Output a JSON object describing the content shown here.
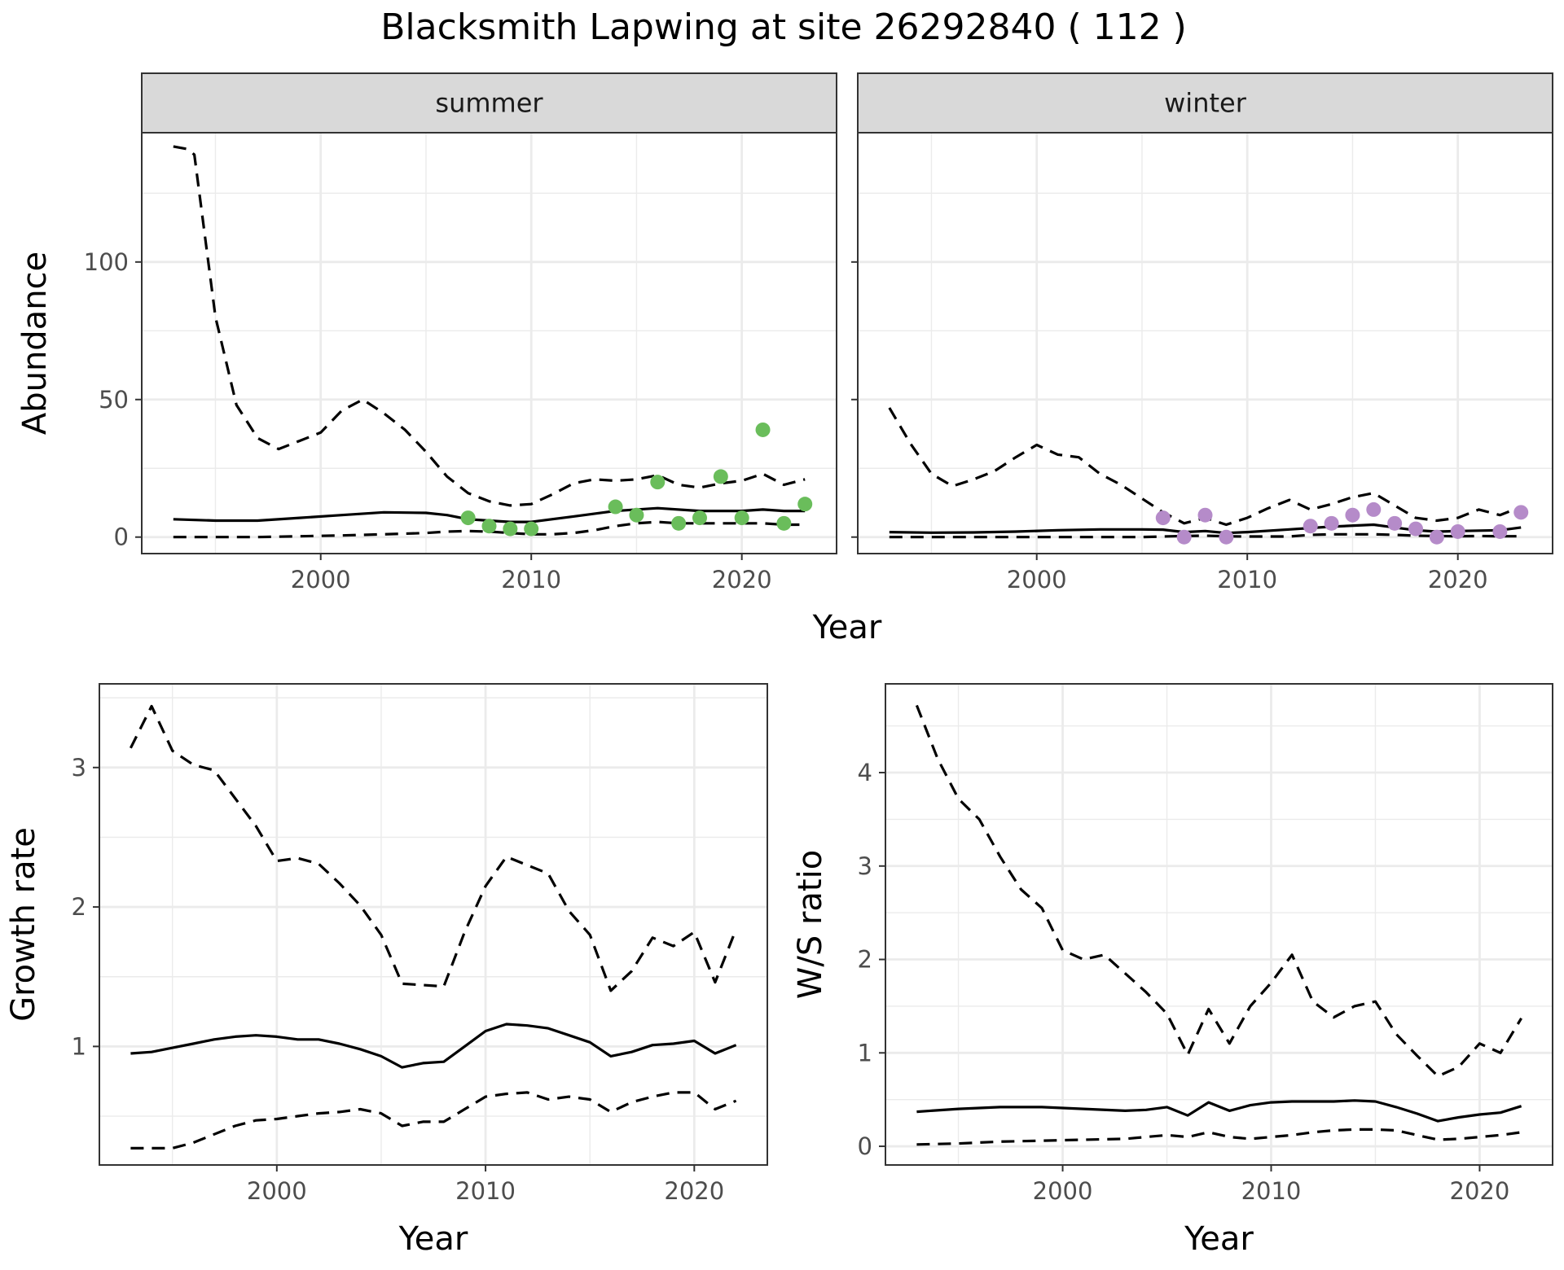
{
  "title": "Blacksmith Lapwing at site 26292840 ( 112 )",
  "colors": {
    "summer_points": "#6abd5b",
    "winter_points": "#b58bc9",
    "line": "#000000",
    "strip_fill": "#d9d9d9",
    "grid": "#ebebeb",
    "tick_text": "#4d4d4d"
  },
  "chart_data": [
    {
      "type": "line",
      "panel": "summer",
      "strip": "summer",
      "xlabel": "Year",
      "ylabel": "Abundance",
      "xlim": [
        1991.5,
        2024.5
      ],
      "ylim": [
        -6,
        147
      ],
      "x_ticks": [
        2000,
        2010,
        2020
      ],
      "y_ticks": [
        0,
        50,
        100
      ],
      "point_color": "#6abd5b",
      "mean": {
        "x": [
          1993,
          1995,
          1997,
          1999,
          2001,
          2003,
          2005,
          2006,
          2007,
          2008,
          2009,
          2010,
          2012,
          2014,
          2016,
          2018,
          2020,
          2021,
          2022,
          2023
        ],
        "y": [
          6.5,
          6,
          6,
          7,
          8,
          9,
          8.8,
          8,
          6.5,
          6,
          5.5,
          5.5,
          7.5,
          9.5,
          10.5,
          9.5,
          9.5,
          10,
          9.5,
          9.5
        ]
      },
      "upper": {
        "x": [
          1993,
          1993.7,
          1994,
          1995,
          1996,
          1997,
          1998,
          1999,
          2000,
          2001,
          2002,
          2003,
          2004,
          2005,
          2006,
          2007,
          2008,
          2009,
          2010,
          2011,
          2012,
          2013,
          2014,
          2015,
          2016,
          2017,
          2018,
          2019,
          2020,
          2021,
          2022,
          2023
        ],
        "y": [
          142,
          141,
          139,
          80,
          48,
          36,
          32,
          35,
          38,
          46,
          50,
          45,
          39,
          31,
          22,
          16,
          13,
          11.5,
          12,
          15.5,
          19.5,
          21,
          20.5,
          21,
          22.5,
          19,
          18,
          19.5,
          20.5,
          23,
          19,
          21
        ]
      },
      "lower": {
        "x": [
          1993,
          1995,
          1997,
          1999,
          2001,
          2003,
          2005,
          2006,
          2007,
          2008,
          2009,
          2010,
          2011,
          2012,
          2013,
          2014,
          2015,
          2016,
          2017,
          2018,
          2019,
          2020,
          2021,
          2022,
          2023
        ],
        "y": [
          0,
          0,
          0,
          0.3,
          0.6,
          1,
          1.5,
          2,
          2.2,
          2,
          1.5,
          1,
          1,
          1.5,
          2.5,
          4,
          5,
          5.5,
          5,
          5,
          5,
          5,
          5,
          4.5,
          4.5
        ]
      },
      "points": {
        "x": [
          2007,
          2008,
          2009,
          2010,
          2014,
          2015,
          2016,
          2017,
          2018,
          2019,
          2020,
          2021,
          2022,
          2023
        ],
        "y": [
          7,
          4,
          3,
          3,
          11,
          8,
          20,
          5,
          7,
          22,
          7,
          39,
          5,
          12
        ]
      }
    },
    {
      "type": "line",
      "panel": "winter",
      "strip": "winter",
      "xlabel": "Year",
      "ylabel": "",
      "xlim": [
        1991.5,
        2024.5
      ],
      "ylim": [
        -6,
        147
      ],
      "x_ticks": [
        2000,
        2010,
        2020
      ],
      "y_ticks": [
        0,
        50,
        100
      ],
      "point_color": "#b58bc9",
      "mean": {
        "x": [
          1993,
          1995,
          1997,
          1999,
          2001,
          2003,
          2005,
          2006,
          2007,
          2008,
          2009,
          2010,
          2012,
          2014,
          2016,
          2017,
          2018,
          2019,
          2020,
          2022,
          2023
        ],
        "y": [
          1.8,
          1.6,
          1.7,
          2,
          2.5,
          2.8,
          2.8,
          2.7,
          1.8,
          2.2,
          1.5,
          1.8,
          2.8,
          3.8,
          4.5,
          3.5,
          2.5,
          2,
          2.2,
          2.5,
          3.5
        ]
      },
      "upper": {
        "x": [
          1993,
          1994,
          1995,
          1996,
          1997,
          1998,
          1999,
          2000,
          2001,
          2002,
          2003,
          2004,
          2005,
          2006,
          2007,
          2008,
          2009,
          2010,
          2011,
          2012,
          2013,
          2014,
          2015,
          2016,
          2017,
          2018,
          2019,
          2020,
          2021,
          2022,
          2023
        ],
        "y": [
          47,
          34,
          23,
          18.5,
          21,
          24,
          29,
          33.5,
          30,
          29,
          23,
          19,
          14,
          9,
          5,
          7,
          4.5,
          7,
          10.5,
          13.5,
          10,
          12,
          14.5,
          16,
          11.5,
          7,
          6,
          7,
          10,
          8,
          11
        ]
      },
      "lower": {
        "x": [
          1993,
          1995,
          1997,
          1999,
          2001,
          2003,
          2005,
          2006,
          2007,
          2008,
          2009,
          2010,
          2011,
          2012,
          2013,
          2014,
          2015,
          2016,
          2017,
          2018,
          2019,
          2020,
          2021,
          2022,
          2023
        ],
        "y": [
          0,
          0,
          0,
          0,
          0,
          0,
          0,
          0.2,
          0.4,
          0.5,
          0.3,
          0.2,
          0.2,
          0.2,
          0.8,
          1,
          1,
          1,
          0.8,
          0.5,
          0.4,
          0.3,
          0.4,
          0.3,
          0.3
        ]
      },
      "points": {
        "x": [
          2006,
          2007,
          2008,
          2009,
          2013,
          2014,
          2015,
          2016,
          2017,
          2018,
          2019,
          2020,
          2022,
          2023
        ],
        "y": [
          7,
          0,
          8,
          0,
          4,
          5,
          8,
          10,
          5,
          3,
          0,
          2,
          2,
          9
        ]
      }
    },
    {
      "type": "line",
      "panel": "growth",
      "xlabel": "Year",
      "ylabel": "Growth rate",
      "xlim": [
        1991.5,
        2023.5
      ],
      "ylim": [
        0.15,
        3.6
      ],
      "x_ticks": [
        2000,
        2010,
        2020
      ],
      "y_ticks": [
        1,
        2,
        3
      ],
      "mean": {
        "x": [
          1993,
          1994,
          1995,
          1996,
          1997,
          1998,
          1999,
          2000,
          2001,
          2002,
          2003,
          2004,
          2005,
          2006,
          2007,
          2008,
          2009,
          2010,
          2011,
          2012,
          2013,
          2014,
          2015,
          2016,
          2017,
          2018,
          2019,
          2020,
          2021,
          2022
        ],
        "y": [
          0.95,
          0.96,
          0.99,
          1.02,
          1.05,
          1.07,
          1.08,
          1.07,
          1.05,
          1.05,
          1.02,
          0.98,
          0.93,
          0.85,
          0.88,
          0.89,
          1.0,
          1.11,
          1.16,
          1.15,
          1.13,
          1.08,
          1.03,
          0.93,
          0.96,
          1.01,
          1.02,
          1.04,
          0.95,
          1.01
        ]
      },
      "upper": {
        "x": [
          1993,
          1994,
          1995,
          1996,
          1997,
          1998,
          1999,
          2000,
          2001,
          2002,
          2003,
          2004,
          2005,
          2006,
          2007,
          2008,
          2009,
          2010,
          2011,
          2012,
          2013,
          2014,
          2015,
          2016,
          2017,
          2018,
          2019,
          2020,
          2021,
          2022
        ],
        "y": [
          3.14,
          3.44,
          3.12,
          3.02,
          2.98,
          2.78,
          2.58,
          2.33,
          2.35,
          2.31,
          2.17,
          2.01,
          1.8,
          1.45,
          1.44,
          1.43,
          1.82,
          2.15,
          2.36,
          2.3,
          2.24,
          1.97,
          1.8,
          1.4,
          1.54,
          1.78,
          1.72,
          1.82,
          1.46,
          1.84
        ]
      },
      "lower": {
        "x": [
          1993,
          1994,
          1995,
          1996,
          1997,
          1998,
          1999,
          2000,
          2001,
          2002,
          2003,
          2004,
          2005,
          2006,
          2007,
          2008,
          2009,
          2010,
          2011,
          2012,
          2013,
          2014,
          2015,
          2016,
          2017,
          2018,
          2019,
          2020,
          2021,
          2022
        ],
        "y": [
          0.27,
          0.27,
          0.27,
          0.31,
          0.37,
          0.43,
          0.47,
          0.48,
          0.5,
          0.52,
          0.53,
          0.55,
          0.52,
          0.43,
          0.46,
          0.46,
          0.55,
          0.64,
          0.66,
          0.67,
          0.62,
          0.64,
          0.62,
          0.53,
          0.6,
          0.64,
          0.67,
          0.67,
          0.55,
          0.61
        ]
      }
    },
    {
      "type": "line",
      "panel": "ratio",
      "xlabel": "Year",
      "ylabel": "W/S ratio",
      "xlim": [
        1991.5,
        2023.5
      ],
      "ylim": [
        -0.2,
        4.95
      ],
      "x_ticks": [
        2000,
        2010,
        2020
      ],
      "y_ticks": [
        0,
        1,
        2,
        3,
        4
      ],
      "mean": {
        "x": [
          1993,
          1995,
          1997,
          1999,
          2001,
          2003,
          2004,
          2005,
          2006,
          2007,
          2008,
          2009,
          2010,
          2011,
          2012,
          2013,
          2014,
          2015,
          2016,
          2017,
          2018,
          2019,
          2020,
          2021,
          2022
        ],
        "y": [
          0.37,
          0.4,
          0.42,
          0.42,
          0.4,
          0.38,
          0.39,
          0.42,
          0.33,
          0.47,
          0.38,
          0.44,
          0.47,
          0.48,
          0.48,
          0.48,
          0.49,
          0.48,
          0.42,
          0.35,
          0.27,
          0.31,
          0.34,
          0.36,
          0.43
        ]
      },
      "upper": {
        "x": [
          1993,
          1994,
          1995,
          1996,
          1997,
          1998,
          1999,
          2000,
          2001,
          2002,
          2003,
          2004,
          2005,
          2006,
          2007,
          2008,
          2009,
          2010,
          2011,
          2012,
          2013,
          2014,
          2015,
          2016,
          2017,
          2018,
          2019,
          2020,
          2021,
          2022
        ],
        "y": [
          4.72,
          4.15,
          3.72,
          3.5,
          3.1,
          2.75,
          2.55,
          2.1,
          2.0,
          2.05,
          1.85,
          1.65,
          1.42,
          0.98,
          1.47,
          1.1,
          1.5,
          1.75,
          2.05,
          1.55,
          1.38,
          1.5,
          1.55,
          1.2,
          0.97,
          0.75,
          0.85,
          1.1,
          1.0,
          1.37
        ]
      },
      "lower": {
        "x": [
          1993,
          1995,
          1997,
          1999,
          2001,
          2003,
          2004,
          2005,
          2006,
          2007,
          2008,
          2009,
          2010,
          2011,
          2012,
          2013,
          2014,
          2015,
          2016,
          2017,
          2018,
          2019,
          2020,
          2021,
          2022
        ],
        "y": [
          0.02,
          0.03,
          0.05,
          0.06,
          0.07,
          0.08,
          0.1,
          0.12,
          0.1,
          0.15,
          0.1,
          0.08,
          0.1,
          0.12,
          0.15,
          0.17,
          0.18,
          0.18,
          0.17,
          0.12,
          0.07,
          0.08,
          0.1,
          0.12,
          0.15
        ]
      }
    }
  ]
}
